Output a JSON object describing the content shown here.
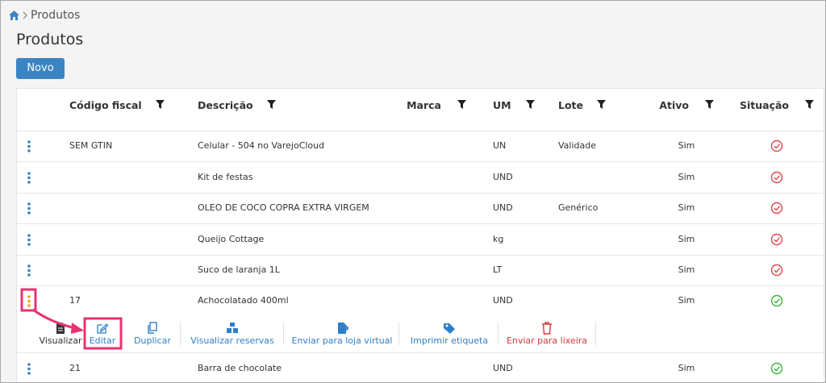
{
  "breadcrumb": {
    "current": "Produtos"
  },
  "page": {
    "title": "Produtos"
  },
  "button": {
    "label": "Novo"
  },
  "table": {
    "columns": [
      "Código fiscal",
      "Descrição",
      "Marca",
      "UM",
      "Lote",
      "Ativo",
      "Situação"
    ],
    "rows": [
      {
        "codigo": "SEM GTIN",
        "descricao": "Celular - 504 no VarejoCloud",
        "um": "UN",
        "lote": "Validade",
        "ativo": "Sim",
        "status_color": "#e0474c"
      },
      {
        "descricao": "Kit de festas",
        "um": "UND",
        "ativo": "Sim",
        "status_color": "#e0474c"
      },
      {
        "descricao": "OLEO DE COCO COPRA EXTRA VIRGEM",
        "um": "UND",
        "lote": "Genérico",
        "ativo": "Sim",
        "status_color": "#e0474c"
      },
      {
        "descricao": "Queijo Cottage",
        "um": "kg",
        "ativo": "Sim",
        "status_color": "#e0474c"
      },
      {
        "descricao": "Suco de laranja 1L",
        "um": "LT",
        "ativo": "Sim",
        "status_color": "#e0474c"
      },
      {
        "codigo": "17",
        "descricao": "Achocolatado 400ml",
        "um": "UND",
        "ativo": "Sim",
        "status_color": "#3cb43c"
      },
      {
        "codigo": "21",
        "descricao": "Barra de chocolate",
        "um": "UND",
        "ativo": "Sim",
        "status_color": "#3cb43c"
      }
    ]
  },
  "actions": [
    {
      "label": "Visualizar",
      "color": "#333333"
    },
    {
      "label": "Editar",
      "color": "#2f7fc8"
    },
    {
      "label": "Duplicar",
      "color": "#2f7fc8"
    },
    {
      "label": "Visualizar reservas",
      "color": "#2f7fc8"
    },
    {
      "label": "Enviar para loja virtual",
      "color": "#2f7fc8"
    },
    {
      "label": "Imprimir etiqueta",
      "color": "#2f7fc8"
    },
    {
      "label": "Enviar para lixeira",
      "color": "#d9363e"
    }
  ]
}
